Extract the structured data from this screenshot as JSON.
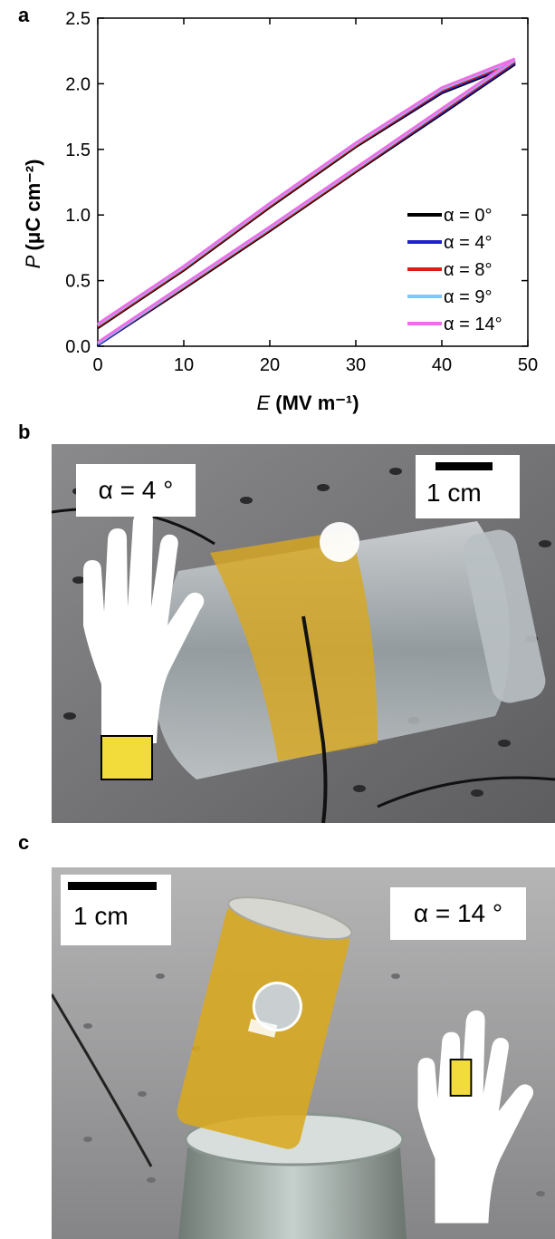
{
  "panels": {
    "a": "a",
    "b": "b",
    "c": "c"
  },
  "chart_data": {
    "type": "line",
    "xlabel": "E (MV m⁻¹)",
    "ylabel": "P (μC cm⁻²)",
    "xlim": [
      0,
      50
    ],
    "ylim": [
      0,
      2.5
    ],
    "xticks": [
      0,
      10,
      20,
      30,
      40,
      50
    ],
    "yticks": [
      0.0,
      0.5,
      1.0,
      1.5,
      2.0,
      2.5
    ],
    "xtick_labels": [
      "0",
      "10",
      "20",
      "30",
      "40",
      "50"
    ],
    "ytick_labels": [
      "0.0",
      "0.5",
      "1.0",
      "1.5",
      "2.0",
      "2.5"
    ],
    "grid": false,
    "legend_position": "bottom-right",
    "series": [
      {
        "name": "α = 0°",
        "color": "#000000",
        "upper": {
          "x": [
            0,
            10,
            20,
            30,
            40,
            48.5
          ],
          "y": [
            0.14,
            0.58,
            1.06,
            1.52,
            1.93,
            2.15
          ]
        },
        "lower": {
          "x": [
            0,
            10,
            20,
            30,
            40,
            48.5
          ],
          "y": [
            0.01,
            0.44,
            0.88,
            1.33,
            1.77,
            2.15
          ]
        }
      },
      {
        "name": "α = 4°",
        "color": "#1f1fcc",
        "upper": {
          "x": [
            0,
            10,
            20,
            30,
            40,
            48.5
          ],
          "y": [
            0.15,
            0.59,
            1.07,
            1.53,
            1.94,
            2.16
          ]
        },
        "lower": {
          "x": [
            0,
            10,
            20,
            30,
            40,
            48.5
          ],
          "y": [
            0.01,
            0.45,
            0.89,
            1.34,
            1.78,
            2.16
          ]
        }
      },
      {
        "name": "α = 8°",
        "color": "#e01b1b",
        "upper": {
          "x": [
            0,
            10,
            20,
            30,
            40,
            48.5
          ],
          "y": [
            0.15,
            0.59,
            1.07,
            1.53,
            1.95,
            2.17
          ]
        },
        "lower": {
          "x": [
            0,
            10,
            20,
            30,
            40,
            48.5
          ],
          "y": [
            0.02,
            0.45,
            0.89,
            1.34,
            1.79,
            2.17
          ]
        }
      },
      {
        "name": "α = 9°",
        "color": "#7ec8f5",
        "upper": {
          "x": [
            0,
            10,
            20,
            30,
            40,
            48.5
          ],
          "y": [
            0.16,
            0.6,
            1.08,
            1.54,
            1.96,
            2.18
          ]
        },
        "lower": {
          "x": [
            0,
            10,
            20,
            30,
            40,
            48.5
          ],
          "y": [
            0.02,
            0.46,
            0.9,
            1.35,
            1.8,
            2.18
          ]
        }
      },
      {
        "name": "α = 14°",
        "color": "#ee6ee8",
        "upper": {
          "x": [
            0,
            10,
            20,
            30,
            40,
            48.5
          ],
          "y": [
            0.17,
            0.61,
            1.09,
            1.55,
            1.97,
            2.19
          ]
        },
        "lower": {
          "x": [
            0,
            10,
            20,
            30,
            40,
            48.5
          ],
          "y": [
            0.03,
            0.47,
            0.91,
            1.36,
            1.81,
            2.19
          ]
        }
      }
    ]
  },
  "photo_b": {
    "angle_label": "α = 4 °",
    "scale_label": "1 cm",
    "film_color": "#d9a81e",
    "hand_patch_color": "#f2dc3c"
  },
  "photo_c": {
    "angle_label": "α = 14 °",
    "scale_label": "1 cm",
    "film_color": "#d9a81e",
    "hand_patch_color": "#f2dc3c"
  }
}
